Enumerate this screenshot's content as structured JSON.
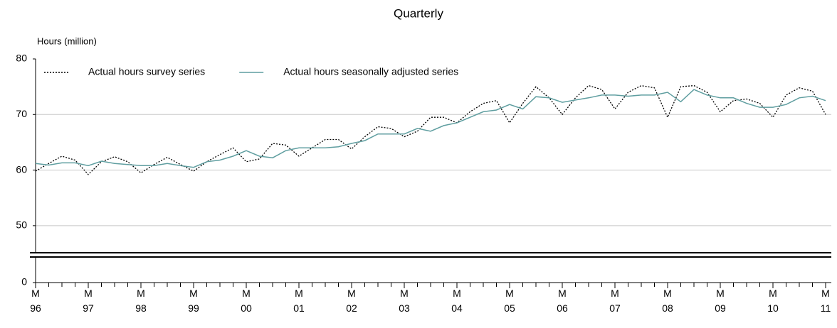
{
  "chart_data": {
    "type": "line",
    "title": "Quarterly",
    "y_axis_title": "Hours (million)",
    "categories": [
      "M\n96",
      null,
      null,
      null,
      "M\n97",
      null,
      null,
      null,
      "M\n98",
      null,
      null,
      null,
      "M\n99",
      null,
      null,
      null,
      "M\n00",
      null,
      null,
      null,
      "M\n01",
      null,
      null,
      null,
      "M\n02",
      null,
      null,
      null,
      "M\n03",
      null,
      null,
      null,
      "M\n04",
      null,
      null,
      null,
      "M\n05",
      null,
      null,
      null,
      "M\n06",
      null,
      null,
      null,
      "M\n07",
      null,
      null,
      null,
      "M\n08",
      null,
      null,
      null,
      "M\n09",
      null,
      null,
      null,
      "M\n10",
      null,
      null,
      null,
      "M\n11"
    ],
    "series": [
      {
        "name": "Actual hours survey series",
        "color": "#000000",
        "dash": "dotted",
        "values": [
          59.8,
          61.2,
          62.5,
          61.8,
          59.2,
          61.5,
          62.4,
          61.5,
          59.5,
          61.0,
          62.3,
          61.0,
          59.8,
          61.5,
          62.8,
          64.0,
          61.5,
          62.0,
          64.8,
          64.5,
          62.5,
          64.0,
          65.5,
          65.5,
          63.8,
          66.0,
          67.8,
          67.5,
          66.0,
          67.0,
          69.5,
          69.5,
          68.5,
          70.5,
          72.0,
          72.5,
          68.5,
          72.0,
          75.0,
          73.0,
          70.0,
          73.0,
          75.2,
          74.5,
          71.0,
          74.0,
          75.2,
          74.8,
          69.5,
          75.0,
          75.2,
          74.0,
          70.5,
          72.5,
          72.8,
          72.0,
          69.5,
          73.5,
          74.8,
          74.2,
          70.0
        ]
      },
      {
        "name": "Actual hours seasonally adjusted series",
        "color": "#5f9ea0",
        "dash": "solid",
        "values": [
          61.2,
          60.9,
          61.3,
          61.3,
          60.8,
          61.6,
          61.2,
          61.0,
          60.8,
          60.8,
          61.2,
          60.8,
          60.5,
          61.5,
          61.8,
          62.5,
          63.5,
          62.5,
          62.2,
          63.5,
          64.0,
          64.0,
          64.0,
          64.2,
          64.8,
          65.3,
          66.5,
          66.5,
          66.5,
          67.5,
          67.0,
          68.0,
          68.5,
          69.5,
          70.5,
          70.8,
          71.8,
          71.0,
          73.2,
          73.0,
          72.2,
          72.6,
          73.0,
          73.5,
          73.5,
          73.3,
          73.5,
          73.5,
          74.0,
          72.3,
          74.5,
          73.5,
          73.0,
          73.0,
          72.0,
          71.3,
          71.3,
          71.8,
          73.0,
          73.3,
          72.5
        ]
      }
    ],
    "ylim": [
      0,
      80
    ],
    "yticks": [
      0,
      50,
      60,
      70,
      80
    ],
    "y_break": [
      0,
      45
    ],
    "grid": true,
    "legend": "top-left"
  }
}
